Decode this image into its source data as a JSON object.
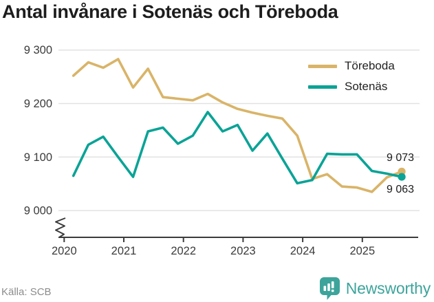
{
  "title": "Antal invånare i Sotenäs och Töreboda",
  "source": "Källa: SCB",
  "branding": {
    "name": "Newsworthy",
    "logo_icon": "bar-chart-speech-bubble",
    "color": "#3DA49B"
  },
  "colors": {
    "grid": "#E2E2E2",
    "axis": "#3B3B3B",
    "tick_text": "#3B3B3B",
    "title_text": "#1D1D1D",
    "end_label_text": "#1A1A1A"
  },
  "chart_data": {
    "type": "line",
    "title": "Antal invånare i Sotenäs och Töreboda",
    "xlabel": "",
    "ylabel": "",
    "grid": "horizontal",
    "legend_position": "top-right",
    "axis_break": true,
    "ylim": [
      9000,
      9300
    ],
    "yticks": [
      9300,
      9200,
      9100,
      9000
    ],
    "ytick_labels": [
      "9 300",
      "9 200",
      "9 100",
      "9 000"
    ],
    "xticks": [
      2020,
      2021,
      2022,
      2023,
      2024,
      2025
    ],
    "x": [
      "2020-K1",
      "2020-K2",
      "2020-K3",
      "2020-K4",
      "2021-K1",
      "2021-K2",
      "2021-K3",
      "2021-K4",
      "2022-K1",
      "2022-K2",
      "2022-K3",
      "2022-K4",
      "2023-K1",
      "2023-K2",
      "2023-K3",
      "2023-K4",
      "2024-K1",
      "2024-K2",
      "2024-K3",
      "2024-K4",
      "2025-K1",
      "2025-K2",
      "2025-K3"
    ],
    "series": [
      {
        "name": "Töreboda",
        "color": "#D9B468",
        "values": [
          9252,
          9277,
          9267,
          9283,
          9230,
          9265,
          9212,
          9209,
          9206,
          9218,
          9202,
          9190,
          9183,
          9177,
          9172,
          9140,
          9059,
          9068,
          9045,
          9043,
          9035,
          9062,
          9073
        ]
      },
      {
        "name": "Sotenäs",
        "color": "#0AA396",
        "values": [
          9065,
          9123,
          9138,
          9100,
          9063,
          9148,
          9155,
          9125,
          9140,
          9184,
          9148,
          9160,
          9112,
          9144,
          9097,
          9051,
          9057,
          9106,
          9105,
          9105,
          9074,
          9069,
          9063
        ]
      }
    ],
    "end_labels": [
      "9 073",
      "9 063"
    ]
  }
}
